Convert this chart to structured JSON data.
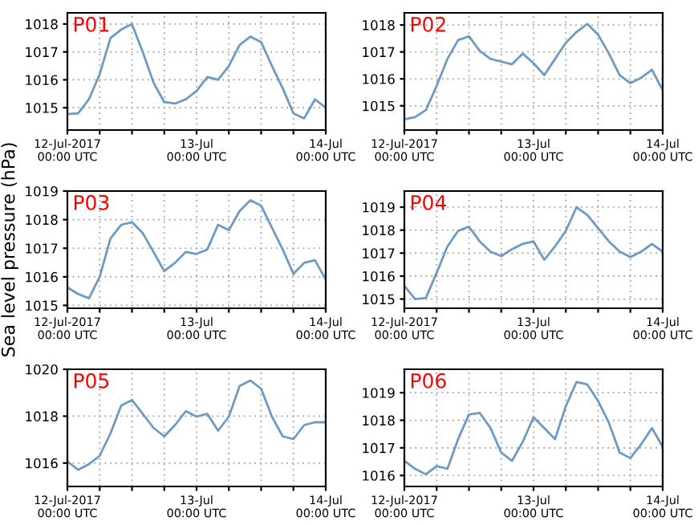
{
  "chart_data": [
    {
      "type": "line",
      "title": "P01",
      "x": [
        "2017-07-12T00:00",
        "2017-07-12T02:00",
        "2017-07-12T04:00",
        "2017-07-12T06:00",
        "2017-07-12T08:00",
        "2017-07-12T10:00",
        "2017-07-12T12:00",
        "2017-07-12T14:00",
        "2017-07-12T16:00",
        "2017-07-12T18:00",
        "2017-07-12T20:00",
        "2017-07-12T22:00",
        "2017-07-13T00:00",
        "2017-07-13T02:00",
        "2017-07-13T04:00",
        "2017-07-13T06:00",
        "2017-07-13T08:00",
        "2017-07-13T10:00",
        "2017-07-13T12:00",
        "2017-07-13T14:00",
        "2017-07-13T16:00",
        "2017-07-13T18:00",
        "2017-07-13T20:00",
        "2017-07-13T22:00",
        "2017-07-14T00:00"
      ],
      "series": [
        {
          "color": "#6d9ac4",
          "values": [
            1014.77,
            1014.8,
            1015.3,
            1016.2,
            1017.5,
            1017.8,
            1018.0,
            1017.0,
            1015.9,
            1015.2,
            1015.15,
            1015.3,
            1015.6,
            1016.1,
            1016.0,
            1016.5,
            1017.25,
            1017.55,
            1017.35,
            1016.5,
            1015.7,
            1014.8,
            1014.62,
            1015.3,
            1015.0
          ]
        }
      ],
      "xlim": [
        "2017-07-12T00:00",
        "2017-07-14T00:00"
      ],
      "xticks": [
        {
          "value": "2017-07-12T00:00",
          "label": "12-Jul-2017\n00:00 UTC"
        },
        {
          "value": "2017-07-12T06:00",
          "label": null
        },
        {
          "value": "2017-07-12T12:00",
          "label": null
        },
        {
          "value": "2017-07-12T18:00",
          "label": null
        },
        {
          "value": "2017-07-13T00:00",
          "label": "13-Jul\n00:00 UTC"
        },
        {
          "value": "2017-07-13T06:00",
          "label": null
        },
        {
          "value": "2017-07-13T12:00",
          "label": null
        },
        {
          "value": "2017-07-13T18:00",
          "label": null
        },
        {
          "value": "2017-07-14T00:00",
          "label": "14-Jul\n00:00 UTC"
        }
      ],
      "ylim": [
        1014.2,
        1018.4
      ],
      "yticks": [
        1015,
        1016,
        1017,
        1018
      ],
      "grid": true
    },
    {
      "type": "line",
      "title": "P02",
      "x": [
        "2017-07-12T00:00",
        "2017-07-12T02:00",
        "2017-07-12T04:00",
        "2017-07-12T06:00",
        "2017-07-12T08:00",
        "2017-07-12T10:00",
        "2017-07-12T12:00",
        "2017-07-12T14:00",
        "2017-07-12T16:00",
        "2017-07-12T18:00",
        "2017-07-12T20:00",
        "2017-07-12T22:00",
        "2017-07-13T00:00",
        "2017-07-13T02:00",
        "2017-07-13T04:00",
        "2017-07-13T06:00",
        "2017-07-13T08:00",
        "2017-07-13T10:00",
        "2017-07-13T12:00",
        "2017-07-13T14:00",
        "2017-07-13T16:00",
        "2017-07-13T18:00",
        "2017-07-13T20:00",
        "2017-07-13T22:00",
        "2017-07-14T00:00"
      ],
      "series": [
        {
          "color": "#6d9ac4",
          "values": [
            1014.5,
            1014.58,
            1014.84,
            1015.74,
            1016.74,
            1017.44,
            1017.58,
            1017.04,
            1016.74,
            1016.64,
            1016.54,
            1016.94,
            1016.58,
            1016.14,
            1016.74,
            1017.34,
            1017.74,
            1018.04,
            1017.64,
            1016.94,
            1016.14,
            1015.84,
            1016.04,
            1016.34,
            1015.58
          ]
        }
      ],
      "xlim": [
        "2017-07-12T00:00",
        "2017-07-14T00:00"
      ],
      "xticks": [
        {
          "value": "2017-07-12T00:00",
          "label": "12-Jul-2017\n00:00 UTC"
        },
        {
          "value": "2017-07-12T06:00",
          "label": null
        },
        {
          "value": "2017-07-12T12:00",
          "label": null
        },
        {
          "value": "2017-07-12T18:00",
          "label": null
        },
        {
          "value": "2017-07-13T00:00",
          "label": "13-Jul\n00:00 UTC"
        },
        {
          "value": "2017-07-13T06:00",
          "label": null
        },
        {
          "value": "2017-07-13T12:00",
          "label": null
        },
        {
          "value": "2017-07-13T18:00",
          "label": null
        },
        {
          "value": "2017-07-14T00:00",
          "label": "14-Jul\n00:00 UTC"
        }
      ],
      "ylim": [
        1014.1,
        1018.45
      ],
      "yticks": [
        1015,
        1016,
        1017,
        1018
      ],
      "grid": true
    },
    {
      "type": "line",
      "title": "P03",
      "ylabel": "Sea level pressure (hPa)",
      "x": [
        "2017-07-12T00:00",
        "2017-07-12T02:00",
        "2017-07-12T04:00",
        "2017-07-12T06:00",
        "2017-07-12T08:00",
        "2017-07-12T10:00",
        "2017-07-12T12:00",
        "2017-07-12T14:00",
        "2017-07-12T16:00",
        "2017-07-12T18:00",
        "2017-07-12T20:00",
        "2017-07-12T22:00",
        "2017-07-13T00:00",
        "2017-07-13T02:00",
        "2017-07-13T04:00",
        "2017-07-13T06:00",
        "2017-07-13T08:00",
        "2017-07-13T10:00",
        "2017-07-13T12:00",
        "2017-07-13T14:00",
        "2017-07-13T16:00",
        "2017-07-13T18:00",
        "2017-07-13T20:00",
        "2017-07-13T22:00",
        "2017-07-14T00:00"
      ],
      "series": [
        {
          "color": "#6d9ac4",
          "values": [
            1015.63,
            1015.4,
            1015.25,
            1016.0,
            1017.34,
            1017.82,
            1017.91,
            1017.53,
            1016.87,
            1016.2,
            1016.49,
            1016.87,
            1016.8,
            1016.96,
            1017.82,
            1017.63,
            1018.3,
            1018.68,
            1018.49,
            1017.72,
            1016.96,
            1016.1,
            1016.49,
            1016.58,
            1015.91
          ]
        }
      ],
      "xlim": [
        "2017-07-12T00:00",
        "2017-07-14T00:00"
      ],
      "xticks": [
        {
          "value": "2017-07-12T00:00",
          "label": "12-Jul-2017\n00:00 UTC"
        },
        {
          "value": "2017-07-12T06:00",
          "label": null
        },
        {
          "value": "2017-07-12T12:00",
          "label": null
        },
        {
          "value": "2017-07-12T18:00",
          "label": null
        },
        {
          "value": "2017-07-13T00:00",
          "label": "13-Jul\n00:00 UTC"
        },
        {
          "value": "2017-07-13T06:00",
          "label": null
        },
        {
          "value": "2017-07-13T12:00",
          "label": null
        },
        {
          "value": "2017-07-13T18:00",
          "label": null
        },
        {
          "value": "2017-07-14T00:00",
          "label": "14-Jul\n00:00 UTC"
        }
      ],
      "ylim": [
        1014.9,
        1019.0
      ],
      "yticks": [
        1015,
        1016,
        1017,
        1018,
        1019
      ],
      "grid": true
    },
    {
      "type": "line",
      "title": "P04",
      "x": [
        "2017-07-12T00:00",
        "2017-07-12T02:00",
        "2017-07-12T04:00",
        "2017-07-12T06:00",
        "2017-07-12T08:00",
        "2017-07-12T10:00",
        "2017-07-12T12:00",
        "2017-07-12T14:00",
        "2017-07-12T16:00",
        "2017-07-12T18:00",
        "2017-07-12T20:00",
        "2017-07-12T22:00",
        "2017-07-13T00:00",
        "2017-07-13T02:00",
        "2017-07-13T04:00",
        "2017-07-13T06:00",
        "2017-07-13T08:00",
        "2017-07-13T10:00",
        "2017-07-13T12:00",
        "2017-07-13T14:00",
        "2017-07-13T16:00",
        "2017-07-13T18:00",
        "2017-07-13T20:00",
        "2017-07-13T22:00",
        "2017-07-14T00:00"
      ],
      "series": [
        {
          "color": "#6d9ac4",
          "values": [
            1015.57,
            1015.0,
            1015.05,
            1016.14,
            1017.29,
            1017.97,
            1018.15,
            1017.51,
            1017.06,
            1016.87,
            1017.17,
            1017.4,
            1017.51,
            1016.71,
            1017.29,
            1017.97,
            1019.0,
            1018.66,
            1018.09,
            1017.51,
            1017.06,
            1016.83,
            1017.06,
            1017.4,
            1017.06
          ]
        }
      ],
      "xlim": [
        "2017-07-12T00:00",
        "2017-07-14T00:00"
      ],
      "xticks": [
        {
          "value": "2017-07-12T00:00",
          "label": "12-Jul-2017\n00:00 UTC"
        },
        {
          "value": "2017-07-12T06:00",
          "label": null
        },
        {
          "value": "2017-07-12T12:00",
          "label": null
        },
        {
          "value": "2017-07-12T18:00",
          "label": null
        },
        {
          "value": "2017-07-13T00:00",
          "label": "13-Jul\n00:00 UTC"
        },
        {
          "value": "2017-07-13T06:00",
          "label": null
        },
        {
          "value": "2017-07-13T12:00",
          "label": null
        },
        {
          "value": "2017-07-13T18:00",
          "label": null
        },
        {
          "value": "2017-07-14T00:00",
          "label": "14-Jul\n00:00 UTC"
        }
      ],
      "ylim": [
        1014.6,
        1019.7
      ],
      "yticks": [
        1015,
        1016,
        1017,
        1018,
        1019
      ],
      "grid": true
    },
    {
      "type": "line",
      "title": "P05",
      "x": [
        "2017-07-12T00:00",
        "2017-07-12T02:00",
        "2017-07-12T04:00",
        "2017-07-12T06:00",
        "2017-07-12T08:00",
        "2017-07-12T10:00",
        "2017-07-12T12:00",
        "2017-07-12T14:00",
        "2017-07-12T16:00",
        "2017-07-12T18:00",
        "2017-07-12T20:00",
        "2017-07-12T22:00",
        "2017-07-13T00:00",
        "2017-07-13T02:00",
        "2017-07-13T04:00",
        "2017-07-13T06:00",
        "2017-07-13T08:00",
        "2017-07-13T10:00",
        "2017-07-13T12:00",
        "2017-07-13T14:00",
        "2017-07-13T16:00",
        "2017-07-13T18:00",
        "2017-07-13T20:00",
        "2017-07-13T22:00",
        "2017-07-14T00:00"
      ],
      "series": [
        {
          "color": "#6d9ac4",
          "values": [
            1016.07,
            1015.71,
            1015.95,
            1016.31,
            1017.26,
            1018.45,
            1018.69,
            1018.1,
            1017.5,
            1017.14,
            1017.62,
            1018.21,
            1017.98,
            1018.1,
            1017.38,
            1017.98,
            1019.29,
            1019.52,
            1019.17,
            1017.98,
            1017.14,
            1017.02,
            1017.62,
            1017.74,
            1017.74
          ]
        }
      ],
      "xlim": [
        "2017-07-12T00:00",
        "2017-07-14T00:00"
      ],
      "xticks": [
        {
          "value": "2017-07-12T00:00",
          "label": "12-Jul-2017\n00:00 UTC"
        },
        {
          "value": "2017-07-12T06:00",
          "label": null
        },
        {
          "value": "2017-07-12T12:00",
          "label": null
        },
        {
          "value": "2017-07-12T18:00",
          "label": null
        },
        {
          "value": "2017-07-13T00:00",
          "label": "13-Jul\n00:00 UTC"
        },
        {
          "value": "2017-07-13T06:00",
          "label": null
        },
        {
          "value": "2017-07-13T12:00",
          "label": null
        },
        {
          "value": "2017-07-13T18:00",
          "label": null
        },
        {
          "value": "2017-07-14T00:00",
          "label": "14-Jul\n00:00 UTC"
        }
      ],
      "ylim": [
        1015.0,
        1020.0
      ],
      "yticks": [
        1016,
        1018,
        1020
      ],
      "grid": true
    },
    {
      "type": "line",
      "title": "P06",
      "x": [
        "2017-07-12T00:00",
        "2017-07-12T02:00",
        "2017-07-12T04:00",
        "2017-07-12T06:00",
        "2017-07-12T08:00",
        "2017-07-12T10:00",
        "2017-07-12T12:00",
        "2017-07-12T14:00",
        "2017-07-12T16:00",
        "2017-07-12T18:00",
        "2017-07-12T20:00",
        "2017-07-12T22:00",
        "2017-07-13T00:00",
        "2017-07-13T02:00",
        "2017-07-13T04:00",
        "2017-07-13T06:00",
        "2017-07-13T08:00",
        "2017-07-13T10:00",
        "2017-07-13T12:00",
        "2017-07-13T14:00",
        "2017-07-13T16:00",
        "2017-07-13T18:00",
        "2017-07-13T20:00",
        "2017-07-13T22:00",
        "2017-07-14T00:00"
      ],
      "series": [
        {
          "color": "#6d9ac4",
          "values": [
            1016.53,
            1016.24,
            1016.04,
            1016.34,
            1016.24,
            1017.32,
            1018.21,
            1018.27,
            1017.72,
            1016.83,
            1016.53,
            1017.22,
            1018.11,
            1017.72,
            1017.32,
            1018.51,
            1019.39,
            1019.3,
            1018.7,
            1017.91,
            1016.83,
            1016.63,
            1017.13,
            1017.72,
            1017.03
          ]
        }
      ],
      "xlim": [
        "2017-07-12T00:00",
        "2017-07-14T00:00"
      ],
      "xticks": [
        {
          "value": "2017-07-12T00:00",
          "label": "12-Jul-2017\n00:00 UTC"
        },
        {
          "value": "2017-07-12T06:00",
          "label": null
        },
        {
          "value": "2017-07-12T12:00",
          "label": null
        },
        {
          "value": "2017-07-12T18:00",
          "label": null
        },
        {
          "value": "2017-07-13T00:00",
          "label": "13-Jul\n00:00 UTC"
        },
        {
          "value": "2017-07-13T06:00",
          "label": null
        },
        {
          "value": "2017-07-13T12:00",
          "label": null
        },
        {
          "value": "2017-07-13T18:00",
          "label": null
        },
        {
          "value": "2017-07-14T00:00",
          "label": "14-Jul\n00:00 UTC"
        }
      ],
      "ylim": [
        1015.6,
        1019.85
      ],
      "yticks": [
        1016,
        1017,
        1018,
        1019
      ],
      "grid": true
    }
  ]
}
